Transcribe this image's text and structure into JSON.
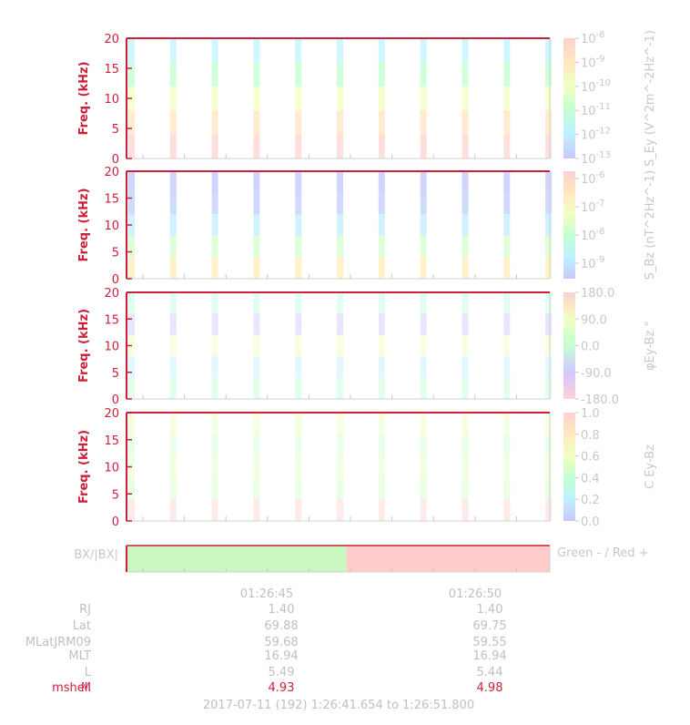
{
  "colors": {
    "axis": "#cc1f3a",
    "muted": "#c0c0c0",
    "green": "#c8f8c0",
    "red": "#ffcccc"
  },
  "chart_data": [
    {
      "type": "heatmap",
      "name": "S_Ey spectrogram",
      "ylabel": "Freq. (kHz)",
      "ylim": [
        0,
        20
      ],
      "yticks": [
        "0",
        "5",
        "10",
        "15",
        "20"
      ],
      "colorbar": {
        "label": "S_Ey (V^2m^-2Hz^-1)",
        "scale": "log",
        "range": [
          1e-13,
          1e-08
        ],
        "ticks": [
          "10^-8",
          "10^-9",
          "10^-10",
          "10^-11",
          "10^-12",
          "10^-13"
        ]
      },
      "burst_count": 11
    },
    {
      "type": "heatmap",
      "name": "S_Bz spectrogram",
      "ylabel": "Freq. (kHz)",
      "ylim": [
        0,
        20
      ],
      "yticks": [
        "0",
        "5",
        "10",
        "15",
        "20"
      ],
      "colorbar": {
        "label": "S_Bz (nT^2Hz^-1)",
        "scale": "log",
        "range": [
          3e-10,
          1e-06
        ],
        "ticks": [
          "10^-6",
          "10^-7",
          "10^-8",
          "10^-9"
        ]
      },
      "burst_count": 11
    },
    {
      "type": "heatmap",
      "name": "phase Ey-Bz",
      "ylabel": "Freq. (kHz)",
      "ylim": [
        0,
        20
      ],
      "yticks": [
        "0",
        "5",
        "10",
        "15",
        "20"
      ],
      "colorbar": {
        "label": "φEy-Bz °",
        "range": [
          -180,
          180
        ],
        "ticks": [
          "180.0",
          "90.0",
          "0.0",
          "-90.0",
          "-180.0"
        ]
      },
      "burst_count": 11
    },
    {
      "type": "heatmap",
      "name": "coherence Ey-Bz",
      "ylabel": "Freq. (kHz)",
      "ylim": [
        0,
        20
      ],
      "yticks": [
        "0",
        "5",
        "10",
        "15",
        "20"
      ],
      "colorbar": {
        "label": "C Ey-Bz",
        "range": [
          0,
          1
        ],
        "ticks": [
          "1.0",
          "0.8",
          "0.6",
          "0.4",
          "0.2",
          "0.0"
        ]
      },
      "burst_count": 11
    },
    {
      "type": "bar",
      "name": "Bx sign",
      "ylabel": "BX/|BX|",
      "legend": "Green - / Red +",
      "segments": [
        {
          "sign": "-",
          "from_fraction": 0.0,
          "to_fraction": 0.52
        },
        {
          "sign": "+",
          "from_fraction": 0.52,
          "to_fraction": 1.0
        }
      ]
    }
  ],
  "time_axis": {
    "tick_labels": [
      "01:26:45",
      "01:26:50"
    ],
    "range_label": "2017-07-11 (192) 1:26:41.654 to 1:26:51.800"
  },
  "ephemeris": {
    "rows": [
      {
        "label": "RJ",
        "values": [
          "1.40",
          "1.40"
        ]
      },
      {
        "label": "Lat",
        "values": [
          "69.88",
          "69.75"
        ]
      },
      {
        "label": "MLatJRM09",
        "values": [
          "59.68",
          "59.55"
        ]
      },
      {
        "label": "MLT",
        "values": [
          "16.94",
          "16.94"
        ]
      },
      {
        "label": "L",
        "values": [
          "5.49",
          "5.44"
        ]
      }
    ],
    "overlap_row": {
      "labels": [
        "mshell",
        "M"
      ],
      "values": [
        "4.93",
        "4.98"
      ]
    }
  }
}
